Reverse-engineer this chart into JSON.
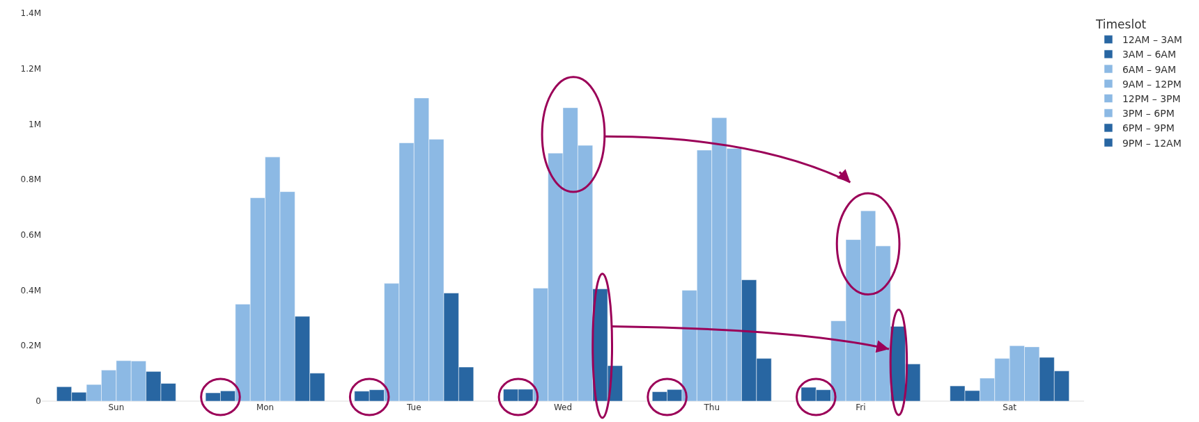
{
  "chart_data": {
    "type": "bar",
    "legend_title": "Timeslot",
    "categories": [
      "Sun",
      "Mon",
      "Tue",
      "Wed",
      "Thu",
      "Fri",
      "Sat"
    ],
    "series": [
      {
        "name": "12AM – 3AM",
        "color": "#2866a2",
        "values": [
          52000,
          30000,
          36000,
          43000,
          34000,
          50000,
          55000
        ]
      },
      {
        "name": "3AM – 6AM",
        "color": "#2866a2",
        "values": [
          32000,
          37000,
          41000,
          43000,
          42000,
          41000,
          38000
        ]
      },
      {
        "name": "6AM – 9AM",
        "color": "#8cb9e4",
        "values": [
          60000,
          350000,
          425000,
          408000,
          400000,
          290000,
          83000
        ]
      },
      {
        "name": "9AM – 12PM",
        "color": "#8cb9e4",
        "values": [
          112000,
          734000,
          932000,
          895000,
          906000,
          583000,
          154000
        ]
      },
      {
        "name": "12PM – 3PM",
        "color": "#8cb9e4",
        "values": [
          146000,
          881000,
          1094000,
          1059000,
          1023000,
          687000,
          200000
        ]
      },
      {
        "name": "3PM – 6PM",
        "color": "#8cb9e4",
        "values": [
          145000,
          756000,
          945000,
          923000,
          912000,
          560000,
          196000
        ]
      },
      {
        "name": "6PM – 9PM",
        "color": "#2866a2",
        "values": [
          107000,
          306000,
          390000,
          405000,
          438000,
          270000,
          158000
        ]
      },
      {
        "name": "9PM – 12AM",
        "color": "#2866a2",
        "values": [
          64000,
          101000,
          123000,
          128000,
          154000,
          134000,
          109000
        ]
      }
    ],
    "ylim": [
      0,
      1400000
    ],
    "yticks": [
      0,
      {
        "value": 200000,
        "label": "0.2M"
      },
      {
        "value": 400000,
        "label": "0.4M"
      },
      {
        "value": 600000,
        "label": "0.6M"
      },
      {
        "value": 800000,
        "label": "0.8M"
      },
      {
        "value": 1000000,
        "label": "1M"
      },
      {
        "value": 1200000,
        "label": "1.2M"
      },
      {
        "value": 1400000,
        "label": "1.4M"
      }
    ],
    "legend": "top right"
  }
}
